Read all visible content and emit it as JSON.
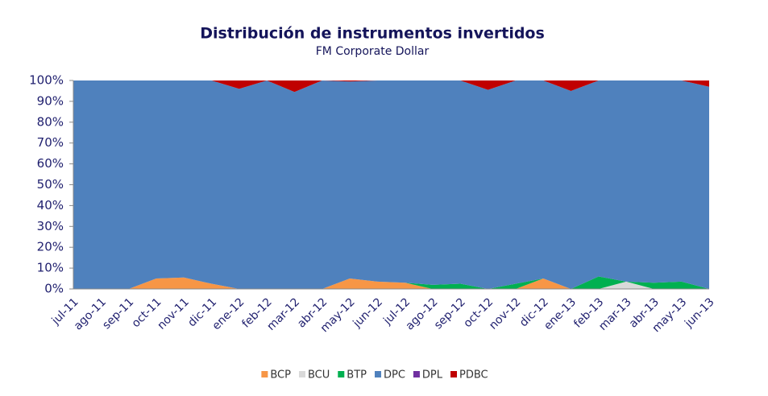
{
  "chart_data": {
    "type": "stacked_area",
    "title": "Distribución de instrumentos invertidos",
    "subtitle": "FM Corporate Dollar",
    "categories": [
      "jul-11",
      "ago-11",
      "sep-11",
      "oct-11",
      "nov-11",
      "dic-11",
      "ene-12",
      "feb-12",
      "mar-12",
      "abr-12",
      "may-12",
      "jun-12",
      "jul-12",
      "ago-12",
      "sep-12",
      "oct-12",
      "nov-12",
      "dic-12",
      "ene-13",
      "feb-13",
      "mar-13",
      "abr-13",
      "may-13",
      "jun-13"
    ],
    "series": [
      {
        "name": "BCP",
        "color": "#f79646",
        "values": [
          0,
          0,
          0,
          5,
          5.5,
          2.5,
          0,
          0,
          0,
          0,
          5,
          3.5,
          3,
          0,
          0,
          0,
          0,
          5,
          0,
          0,
          0,
          0,
          0,
          0
        ]
      },
      {
        "name": "BCU",
        "color": "#d9d9d9",
        "values": [
          0,
          0,
          0,
          0,
          0,
          0,
          0,
          0,
          0,
          0,
          0,
          0,
          0,
          0,
          0,
          0,
          0,
          0,
          0,
          0,
          3.5,
          0,
          0,
          0
        ]
      },
      {
        "name": "BTP",
        "color": "#00b050",
        "values": [
          0,
          0,
          0,
          0,
          0,
          0,
          0,
          0,
          0,
          0,
          0,
          0,
          0,
          2,
          2.5,
          0,
          2.5,
          0,
          0,
          6,
          0,
          3,
          3.5,
          0
        ]
      },
      {
        "name": "DPC",
        "color": "#4f81bd",
        "values": [
          100,
          100,
          100,
          95,
          94.5,
          97.5,
          96,
          100,
          94.5,
          100,
          94.5,
          96.5,
          97,
          98,
          97.5,
          95.5,
          97.5,
          95,
          95,
          94,
          96.5,
          97,
          96.5,
          97
        ]
      },
      {
        "name": "DPL",
        "color": "#7030a0",
        "values": [
          0,
          0,
          0,
          0,
          0,
          0,
          0,
          0,
          0,
          0,
          0,
          0,
          0,
          0,
          0,
          0,
          0,
          0,
          0,
          0,
          0,
          0,
          0,
          0
        ]
      },
      {
        "name": "PDBC",
        "color": "#c00000",
        "values": [
          0,
          0,
          0,
          0,
          0,
          0,
          4,
          0,
          5.5,
          0,
          0.5,
          0,
          0,
          0,
          0,
          4.5,
          0,
          0,
          5,
          0,
          0,
          0,
          0,
          3
        ]
      }
    ],
    "ylim": [
      0,
      100
    ],
    "yticks": [
      {
        "value": 0,
        "label": "0%"
      },
      {
        "value": 10,
        "label": "10%"
      },
      {
        "value": 20,
        "label": "20%"
      },
      {
        "value": 30,
        "label": "30%"
      },
      {
        "value": 40,
        "label": "40%"
      },
      {
        "value": 50,
        "label": "50%"
      },
      {
        "value": 60,
        "label": "60%"
      },
      {
        "value": 70,
        "label": "70%"
      },
      {
        "value": 80,
        "label": "80%"
      },
      {
        "value": 90,
        "label": "90%"
      },
      {
        "value": 100,
        "label": "100%"
      }
    ],
    "legend": "bottom"
  }
}
